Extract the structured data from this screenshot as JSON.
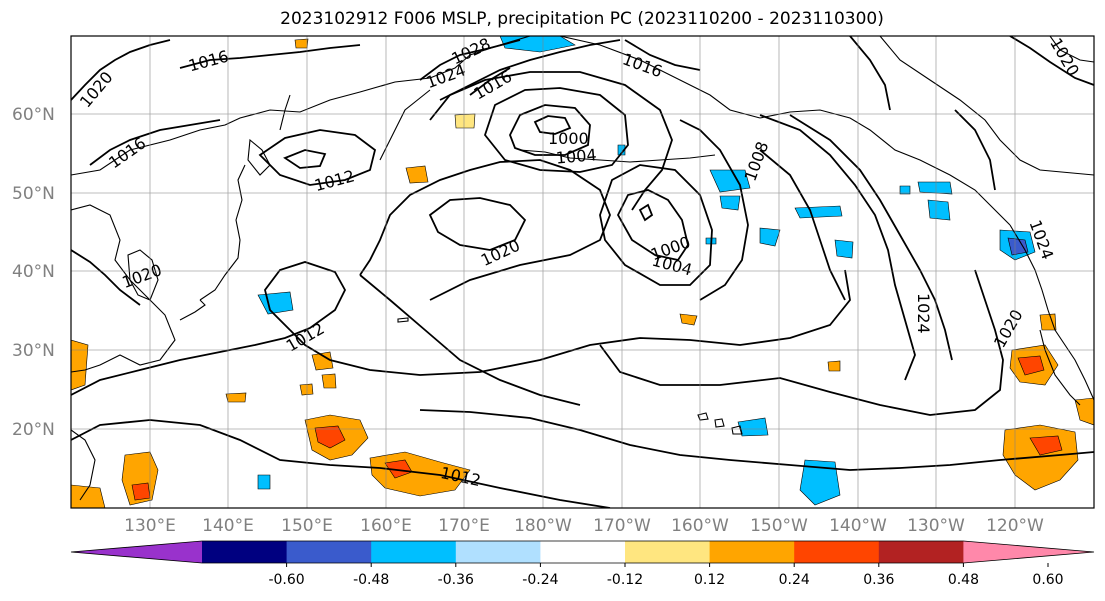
{
  "title": "2023102912 F006 MSLP, precipitation PC (2023110200 - 2023110300)",
  "map": {
    "lat_labels": [
      "60°N",
      "50°N",
      "40°N",
      "30°N",
      "20°N"
    ],
    "lon_labels": [
      "130°E",
      "140°E",
      "150°E",
      "160°E",
      "170°E",
      "180°W",
      "170°W",
      "160°W",
      "150°W",
      "140°W",
      "130°W",
      "120°W"
    ],
    "contour_color": "#000000",
    "coast_color": "#000000",
    "contour_labels": [
      "1016",
      "1028",
      "1024",
      "1016",
      "1020",
      "1016",
      "1020",
      "1012",
      "1000",
      "1004",
      "1020",
      "1000",
      "1004",
      "1008",
      "1012",
      "1012",
      "1024",
      "1020",
      "1024",
      "1016",
      "1020"
    ]
  },
  "colorbar": {
    "colors": [
      "#9932cc",
      "#000080",
      "#3a5bcc",
      "#00bfff",
      "#b0e0ff",
      "#ffffff",
      "#ffe680",
      "#ffa500",
      "#ff4500",
      "#b22222",
      "#ff88aa"
    ],
    "tick_labels": [
      "-0.60",
      "-0.48",
      "-0.36",
      "-0.24",
      "-0.12",
      "0.12",
      "0.24",
      "0.36",
      "0.48",
      "0.60"
    ]
  }
}
